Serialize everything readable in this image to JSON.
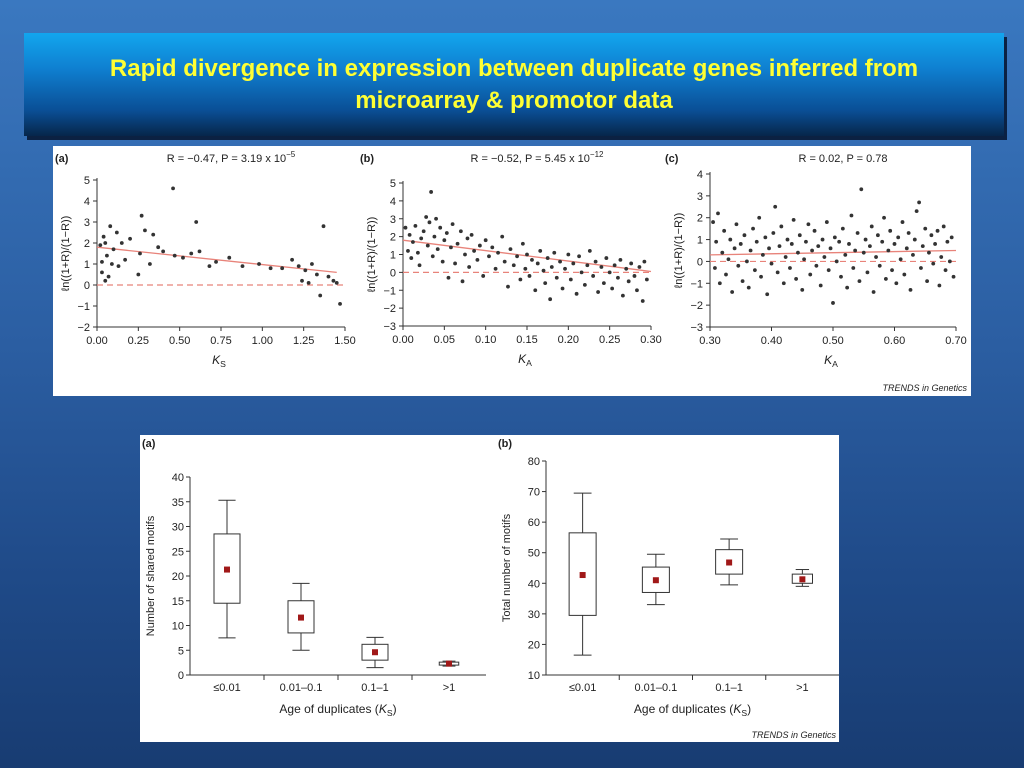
{
  "slide": {
    "title_line1": "Rapid divergence in expression between duplicate genes inferred from",
    "title_line2": "microarray & promotor data"
  },
  "colors": {
    "background": "#2b5ea2",
    "title_text": "#ffff33",
    "fit_line": "#e8837a",
    "zero_line": "#e8837a",
    "point": "#333333",
    "mean_marker": "#a01818"
  },
  "figure1": {
    "credit": "TRENDS in Genetics",
    "ylabel": "ℓn((1+R)/(1−R))"
  },
  "figure2": {
    "credit": "TRENDS in Genetics"
  },
  "chart_data": [
    {
      "panel": "(a)",
      "type": "scatter",
      "annotation": "R = −0.47, P = 3.19 x 10−5",
      "xlabel": "KS",
      "ylabel": "ℓn((1+R)/(1−R))",
      "xlim": [
        0,
        1.5
      ],
      "ylim": [
        -2,
        5
      ],
      "xticks": [
        "0.00",
        "0.25",
        "0.50",
        "0.75",
        "1.00",
        "1.25",
        "1.50"
      ],
      "yticks": [
        "−2",
        "−1",
        "0",
        "1",
        "2",
        "3",
        "4",
        "5"
      ],
      "fit_line": [
        [
          0,
          1.8
        ],
        [
          1.45,
          0.6
        ]
      ],
      "reference_line_y": 0,
      "points": [
        [
          0.02,
          1.9
        ],
        [
          0.03,
          1.1
        ],
        [
          0.03,
          0.6
        ],
        [
          0.04,
          2.3
        ],
        [
          0.05,
          0.2
        ],
        [
          0.05,
          2.0
        ],
        [
          0.06,
          1.4
        ],
        [
          0.07,
          0.4
        ],
        [
          0.08,
          2.8
        ],
        [
          0.09,
          1.0
        ],
        [
          0.1,
          1.7
        ],
        [
          0.12,
          2.5
        ],
        [
          0.13,
          0.9
        ],
        [
          0.15,
          2.0
        ],
        [
          0.17,
          1.2
        ],
        [
          0.2,
          2.2
        ],
        [
          0.25,
          0.5
        ],
        [
          0.26,
          1.5
        ],
        [
          0.27,
          3.3
        ],
        [
          0.29,
          2.6
        ],
        [
          0.32,
          1.0
        ],
        [
          0.34,
          2.4
        ],
        [
          0.37,
          1.8
        ],
        [
          0.4,
          1.6
        ],
        [
          0.46,
          4.6
        ],
        [
          0.47,
          1.4
        ],
        [
          0.52,
          1.3
        ],
        [
          0.57,
          1.5
        ],
        [
          0.6,
          3.0
        ],
        [
          0.62,
          1.6
        ],
        [
          0.68,
          0.9
        ],
        [
          0.72,
          1.1
        ],
        [
          0.8,
          1.3
        ],
        [
          0.88,
          0.9
        ],
        [
          0.98,
          1.0
        ],
        [
          1.05,
          0.8
        ],
        [
          1.12,
          0.8
        ],
        [
          1.18,
          1.2
        ],
        [
          1.22,
          0.9
        ],
        [
          1.24,
          0.2
        ],
        [
          1.26,
          0.7
        ],
        [
          1.28,
          0.1
        ],
        [
          1.3,
          1.0
        ],
        [
          1.33,
          0.5
        ],
        [
          1.35,
          -0.5
        ],
        [
          1.37,
          2.8
        ],
        [
          1.4,
          0.4
        ],
        [
          1.43,
          0.2
        ],
        [
          1.45,
          0.1
        ],
        [
          1.47,
          -0.9
        ]
      ]
    },
    {
      "panel": "(b)",
      "type": "scatter",
      "annotation": "R = −0.52, P = 5.45 x 10−12",
      "xlabel": "KA",
      "ylabel": "ℓn((1+R)/(1−R))",
      "xlim": [
        0,
        0.3
      ],
      "ylim": [
        -3,
        5
      ],
      "xticks": [
        "0.00",
        "0.05",
        "0.10",
        "0.15",
        "0.20",
        "0.25",
        "0.30"
      ],
      "yticks": [
        "−3",
        "−2",
        "−1",
        "0",
        "1",
        "2",
        "3",
        "4",
        "5"
      ],
      "fit_line": [
        [
          0,
          1.8
        ],
        [
          0.3,
          0.05
        ]
      ],
      "reference_line_y": 0,
      "points": [
        [
          0.003,
          2.5
        ],
        [
          0.006,
          1.2
        ],
        [
          0.008,
          2.1
        ],
        [
          0.01,
          0.8
        ],
        [
          0.012,
          1.7
        ],
        [
          0.015,
          2.6
        ],
        [
          0.018,
          1.1
        ],
        [
          0.02,
          0.4
        ],
        [
          0.022,
          1.9
        ],
        [
          0.025,
          2.3
        ],
        [
          0.028,
          3.1
        ],
        [
          0.03,
          1.5
        ],
        [
          0.032,
          2.8
        ],
        [
          0.034,
          4.5
        ],
        [
          0.036,
          0.9
        ],
        [
          0.038,
          2.0
        ],
        [
          0.04,
          3.0
        ],
        [
          0.042,
          1.3
        ],
        [
          0.045,
          2.5
        ],
        [
          0.048,
          0.6
        ],
        [
          0.05,
          1.8
        ],
        [
          0.053,
          2.2
        ],
        [
          0.055,
          -0.3
        ],
        [
          0.058,
          1.4
        ],
        [
          0.06,
          2.7
        ],
        [
          0.063,
          0.5
        ],
        [
          0.066,
          1.6
        ],
        [
          0.07,
          2.3
        ],
        [
          0.072,
          -0.5
        ],
        [
          0.075,
          1.0
        ],
        [
          0.078,
          1.9
        ],
        [
          0.08,
          0.3
        ],
        [
          0.083,
          2.1
        ],
        [
          0.086,
          1.2
        ],
        [
          0.09,
          0.7
        ],
        [
          0.093,
          1.5
        ],
        [
          0.097,
          -0.2
        ],
        [
          0.1,
          1.8
        ],
        [
          0.104,
          0.9
        ],
        [
          0.108,
          1.4
        ],
        [
          0.112,
          0.2
        ],
        [
          0.115,
          1.1
        ],
        [
          0.12,
          2.0
        ],
        [
          0.123,
          0.6
        ],
        [
          0.127,
          -0.8
        ],
        [
          0.13,
          1.3
        ],
        [
          0.134,
          0.4
        ],
        [
          0.138,
          0.9
        ],
        [
          0.142,
          -0.4
        ],
        [
          0.145,
          1.6
        ],
        [
          0.148,
          0.2
        ],
        [
          0.15,
          1.0
        ],
        [
          0.153,
          -0.2
        ],
        [
          0.156,
          0.7
        ],
        [
          0.16,
          -1.0
        ],
        [
          0.163,
          0.5
        ],
        [
          0.166,
          1.2
        ],
        [
          0.17,
          0.1
        ],
        [
          0.172,
          -0.6
        ],
        [
          0.175,
          0.8
        ],
        [
          0.178,
          -1.5
        ],
        [
          0.18,
          0.3
        ],
        [
          0.183,
          1.1
        ],
        [
          0.186,
          -0.3
        ],
        [
          0.19,
          0.6
        ],
        [
          0.193,
          -0.9
        ],
        [
          0.196,
          0.2
        ],
        [
          0.2,
          1.0
        ],
        [
          0.203,
          -0.4
        ],
        [
          0.206,
          0.5
        ],
        [
          0.21,
          -1.2
        ],
        [
          0.213,
          0.9
        ],
        [
          0.216,
          0.0
        ],
        [
          0.22,
          -0.7
        ],
        [
          0.223,
          0.4
        ],
        [
          0.226,
          1.2
        ],
        [
          0.23,
          -0.2
        ],
        [
          0.233,
          0.6
        ],
        [
          0.236,
          -1.1
        ],
        [
          0.24,
          0.3
        ],
        [
          0.243,
          -0.6
        ],
        [
          0.246,
          0.8
        ],
        [
          0.25,
          0.0
        ],
        [
          0.253,
          -0.9
        ],
        [
          0.256,
          0.4
        ],
        [
          0.26,
          -0.3
        ],
        [
          0.263,
          0.7
        ],
        [
          0.266,
          -1.3
        ],
        [
          0.27,
          0.2
        ],
        [
          0.273,
          -0.5
        ],
        [
          0.276,
          0.5
        ],
        [
          0.28,
          -0.2
        ],
        [
          0.283,
          -1.0
        ],
        [
          0.286,
          0.3
        ],
        [
          0.29,
          -1.6
        ],
        [
          0.292,
          0.6
        ],
        [
          0.295,
          -0.4
        ]
      ]
    },
    {
      "panel": "(c)",
      "type": "scatter",
      "annotation": "R = 0.02, P = 0.78",
      "xlabel": "KA",
      "ylabel": "ℓn((1+R)/(1−R))",
      "xlim": [
        0.3,
        0.7
      ],
      "ylim": [
        -3,
        4
      ],
      "xticks": [
        "0.30",
        "0.40",
        "0.50",
        "0.60",
        "0.70"
      ],
      "yticks": [
        "−3",
        "−2",
        "−1",
        "0",
        "1",
        "2",
        "3",
        "4"
      ],
      "fit_line": [
        [
          0.3,
          0.3
        ],
        [
          0.7,
          0.5
        ]
      ],
      "reference_line_y": 0,
      "points": [
        [
          0.305,
          1.8
        ],
        [
          0.308,
          -0.3
        ],
        [
          0.31,
          0.9
        ],
        [
          0.313,
          2.2
        ],
        [
          0.316,
          -1.0
        ],
        [
          0.32,
          0.4
        ],
        [
          0.323,
          1.4
        ],
        [
          0.326,
          -0.6
        ],
        [
          0.33,
          0.1
        ],
        [
          0.333,
          1.0
        ],
        [
          0.336,
          -1.4
        ],
        [
          0.34,
          0.6
        ],
        [
          0.343,
          1.7
        ],
        [
          0.346,
          -0.2
        ],
        [
          0.35,
          0.8
        ],
        [
          0.353,
          -0.9
        ],
        [
          0.356,
          1.2
        ],
        [
          0.36,
          0.0
        ],
        [
          0.363,
          -1.2
        ],
        [
          0.366,
          0.5
        ],
        [
          0.37,
          1.5
        ],
        [
          0.373,
          -0.4
        ],
        [
          0.376,
          0.9
        ],
        [
          0.38,
          2.0
        ],
        [
          0.383,
          -0.7
        ],
        [
          0.386,
          0.3
        ],
        [
          0.39,
          1.1
        ],
        [
          0.393,
          -1.5
        ],
        [
          0.396,
          0.6
        ],
        [
          0.4,
          -0.1
        ],
        [
          0.403,
          1.3
        ],
        [
          0.406,
          2.5
        ],
        [
          0.41,
          -0.5
        ],
        [
          0.413,
          0.7
        ],
        [
          0.416,
          1.6
        ],
        [
          0.42,
          -1.0
        ],
        [
          0.423,
          0.2
        ],
        [
          0.426,
          1.0
        ],
        [
          0.43,
          -0.3
        ],
        [
          0.433,
          0.8
        ],
        [
          0.436,
          1.9
        ],
        [
          0.44,
          -0.8
        ],
        [
          0.443,
          0.4
        ],
        [
          0.446,
          1.2
        ],
        [
          0.45,
          -1.3
        ],
        [
          0.453,
          0.1
        ],
        [
          0.456,
          0.9
        ],
        [
          0.46,
          1.7
        ],
        [
          0.463,
          -0.6
        ],
        [
          0.466,
          0.5
        ],
        [
          0.47,
          1.4
        ],
        [
          0.473,
          -0.2
        ],
        [
          0.476,
          0.7
        ],
        [
          0.48,
          -1.1
        ],
        [
          0.483,
          1.0
        ],
        [
          0.486,
          0.2
        ],
        [
          0.49,
          1.8
        ],
        [
          0.493,
          -0.4
        ],
        [
          0.496,
          0.6
        ],
        [
          0.5,
          -1.9
        ],
        [
          0.503,
          1.1
        ],
        [
          0.506,
          0.0
        ],
        [
          0.51,
          0.9
        ],
        [
          0.513,
          -0.7
        ],
        [
          0.516,
          1.5
        ],
        [
          0.52,
          0.3
        ],
        [
          0.523,
          -1.2
        ],
        [
          0.526,
          0.8
        ],
        [
          0.53,
          2.1
        ],
        [
          0.533,
          -0.3
        ],
        [
          0.536,
          0.5
        ],
        [
          0.54,
          1.3
        ],
        [
          0.543,
          -0.9
        ],
        [
          0.546,
          3.3
        ],
        [
          0.55,
          0.4
        ],
        [
          0.553,
          1.0
        ],
        [
          0.556,
          -0.5
        ],
        [
          0.56,
          0.7
        ],
        [
          0.563,
          1.6
        ],
        [
          0.566,
          -1.4
        ],
        [
          0.57,
          0.2
        ],
        [
          0.573,
          1.2
        ],
        [
          0.576,
          -0.2
        ],
        [
          0.58,
          0.9
        ],
        [
          0.583,
          2.0
        ],
        [
          0.586,
          -0.8
        ],
        [
          0.59,
          0.5
        ],
        [
          0.593,
          1.4
        ],
        [
          0.596,
          -0.4
        ],
        [
          0.6,
          0.8
        ],
        [
          0.603,
          -1.0
        ],
        [
          0.606,
          1.1
        ],
        [
          0.61,
          0.1
        ],
        [
          0.613,
          1.8
        ],
        [
          0.616,
          -0.6
        ],
        [
          0.62,
          0.6
        ],
        [
          0.623,
          1.3
        ],
        [
          0.626,
          -1.3
        ],
        [
          0.63,
          0.3
        ],
        [
          0.633,
          1.0
        ],
        [
          0.636,
          2.3
        ],
        [
          0.64,
          2.7
        ],
        [
          0.643,
          -0.3
        ],
        [
          0.646,
          0.7
        ],
        [
          0.65,
          1.5
        ],
        [
          0.653,
          -0.9
        ],
        [
          0.656,
          0.4
        ],
        [
          0.66,
          1.2
        ],
        [
          0.663,
          -0.1
        ],
        [
          0.666,
          0.8
        ],
        [
          0.67,
          1.4
        ],
        [
          0.673,
          -1.1
        ],
        [
          0.676,
          0.2
        ],
        [
          0.68,
          1.6
        ],
        [
          0.683,
          -0.4
        ],
        [
          0.686,
          0.9
        ],
        [
          0.69,
          0.0
        ],
        [
          0.693,
          1.1
        ],
        [
          0.696,
          -0.7
        ]
      ]
    },
    {
      "panel": "(a)",
      "type": "box",
      "xlabel": "Age of duplicates (KS)",
      "ylabel": "Number of shared motifs",
      "ylim": [
        0,
        40
      ],
      "yticks": [
        "0",
        "5",
        "10",
        "15",
        "20",
        "25",
        "30",
        "35",
        "40"
      ],
      "categories": [
        "≤0.01",
        "0.01–0.1",
        "0.1–1",
        ">1"
      ],
      "boxes": [
        {
          "min": 7.5,
          "q1": 14.5,
          "q3": 28.5,
          "max": 35.3,
          "mean": 21.3
        },
        {
          "min": 5.0,
          "q1": 8.5,
          "q3": 15.0,
          "max": 18.5,
          "mean": 11.6
        },
        {
          "min": 1.5,
          "q1": 3.0,
          "q3": 6.2,
          "max": 7.6,
          "mean": 4.6
        },
        {
          "min": 1.8,
          "q1": 2.0,
          "q3": 2.6,
          "max": 2.8,
          "mean": 2.3
        }
      ]
    },
    {
      "panel": "(b)",
      "type": "box",
      "xlabel": "Age of duplicates (KS)",
      "ylabel": "Total number of motifs",
      "ylim": [
        10,
        80
      ],
      "yticks": [
        "10",
        "20",
        "30",
        "40",
        "50",
        "60",
        "70",
        "80"
      ],
      "categories": [
        "≤0.01",
        "0.01–0.1",
        "0.1–1",
        ">1"
      ],
      "boxes": [
        {
          "min": 16.5,
          "q1": 29.5,
          "q3": 56.5,
          "max": 69.5,
          "mean": 42.7
        },
        {
          "min": 33.0,
          "q1": 37.0,
          "q3": 45.3,
          "max": 49.5,
          "mean": 41.0
        },
        {
          "min": 39.5,
          "q1": 43.0,
          "q3": 51.0,
          "max": 54.5,
          "mean": 46.8
        },
        {
          "min": 39.0,
          "q1": 40.0,
          "q3": 43.0,
          "max": 44.5,
          "mean": 41.3
        }
      ]
    }
  ]
}
